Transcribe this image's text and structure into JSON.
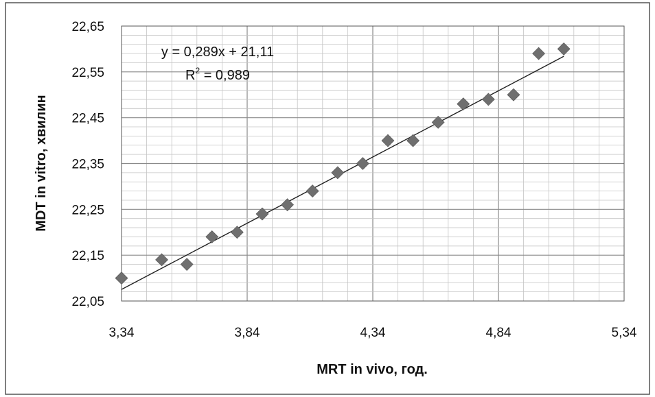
{
  "chart_data": {
    "type": "scatter",
    "title": "",
    "xlabel": "MRT in vivo, год.",
    "ylabel": "MDT in vitro, хвилин",
    "xlim": [
      3.34,
      5.34
    ],
    "ylim": [
      22.05,
      22.65
    ],
    "x_ticks": [
      "3,34",
      "3,84",
      "4,34",
      "4,84",
      "5,34"
    ],
    "y_ticks": [
      "22,05",
      "22,15",
      "22,25",
      "22,35",
      "22,45",
      "22,55",
      "22,65"
    ],
    "grid": true,
    "legend": "none",
    "marker": "diamond",
    "marker_color": "#6f6f6f",
    "points": [
      {
        "x": 3.34,
        "y": 22.1
      },
      {
        "x": 3.5,
        "y": 22.14
      },
      {
        "x": 3.6,
        "y": 22.13
      },
      {
        "x": 3.7,
        "y": 22.19
      },
      {
        "x": 3.8,
        "y": 22.2
      },
      {
        "x": 3.9,
        "y": 22.24
      },
      {
        "x": 4.0,
        "y": 22.26
      },
      {
        "x": 4.1,
        "y": 22.29
      },
      {
        "x": 4.2,
        "y": 22.33
      },
      {
        "x": 4.3,
        "y": 22.35
      },
      {
        "x": 4.4,
        "y": 22.4
      },
      {
        "x": 4.5,
        "y": 22.4
      },
      {
        "x": 4.6,
        "y": 22.44
      },
      {
        "x": 4.7,
        "y": 22.48
      },
      {
        "x": 4.8,
        "y": 22.49
      },
      {
        "x": 4.9,
        "y": 22.5
      },
      {
        "x": 5.0,
        "y": 22.59
      },
      {
        "x": 5.1,
        "y": 22.6
      }
    ],
    "trendline": {
      "type": "linear",
      "slope": 0.289,
      "intercept": 21.11,
      "x_range": [
        3.34,
        5.1
      ],
      "equation": "y = 0,289x + 21,11",
      "r2_label": "R",
      "r2_value": " = 0,989"
    }
  }
}
